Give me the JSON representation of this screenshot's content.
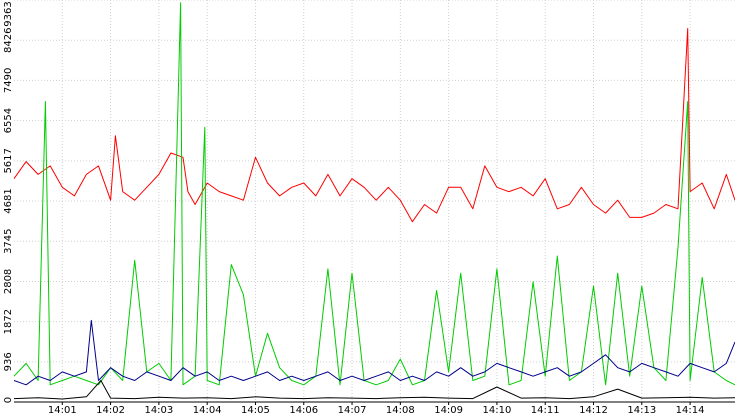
{
  "chart_data": {
    "type": "line",
    "title": "",
    "xlabel": "",
    "ylabel": "",
    "grid": true,
    "legend": "none",
    "y_ticks": [
      0,
      936,
      1872,
      2808,
      3745,
      4681,
      5617,
      6554,
      7490,
      8426,
      9363
    ],
    "ylim": [
      0,
      9363
    ],
    "x_ticks": [
      "14:01",
      "14:02",
      "14:03",
      "14:04",
      "14:05",
      "14:06",
      "14:07",
      "14:08",
      "14:09",
      "14:10",
      "14:11",
      "14:12",
      "14:13",
      "14:14"
    ],
    "x_range_minutes": [
      0.0,
      14.93
    ],
    "x_tick_minutes": [
      1,
      2,
      3,
      4,
      5,
      6,
      7,
      8,
      9,
      10,
      11,
      12,
      13,
      14
    ],
    "series": [
      {
        "color": "#ff0000",
        "x": [
          0.0,
          0.25,
          0.5,
          0.75,
          1.0,
          1.25,
          1.5,
          1.75,
          2.0,
          2.1,
          2.25,
          2.5,
          2.75,
          3.0,
          3.25,
          3.5,
          3.6,
          3.75,
          4.0,
          4.25,
          4.5,
          4.75,
          5.0,
          5.25,
          5.5,
          5.75,
          6.0,
          6.25,
          6.5,
          6.75,
          7.0,
          7.25,
          7.5,
          7.75,
          8.0,
          8.25,
          8.5,
          8.75,
          9.0,
          9.25,
          9.5,
          9.75,
          10.0,
          10.25,
          10.5,
          10.75,
          11.0,
          11.25,
          11.5,
          11.75,
          12.0,
          12.25,
          12.5,
          12.75,
          13.0,
          13.25,
          13.5,
          13.75,
          13.95,
          14.0,
          14.25,
          14.5,
          14.75,
          14.93
        ],
        "y": [
          5200,
          5600,
          5300,
          5500,
          5000,
          4800,
          5300,
          5500,
          4700,
          6200,
          4900,
          4700,
          5000,
          5300,
          5800,
          5700,
          4900,
          4600,
          5100,
          4900,
          4800,
          4700,
          5700,
          5100,
          4800,
          5000,
          5100,
          4800,
          5300,
          4800,
          5200,
          5000,
          4700,
          5000,
          4700,
          4200,
          4600,
          4400,
          5000,
          5000,
          4500,
          5500,
          5000,
          4900,
          5000,
          4800,
          5200,
          4500,
          4600,
          5000,
          4600,
          4400,
          4700,
          4300,
          4300,
          4400,
          4600,
          4500,
          8700,
          4900,
          5100,
          4500,
          5300,
          4700
        ]
      },
      {
        "color": "#00cc00",
        "x": [
          0.0,
          0.25,
          0.5,
          0.65,
          0.75,
          1.0,
          1.25,
          1.5,
          1.75,
          2.0,
          2.25,
          2.5,
          2.75,
          3.0,
          3.25,
          3.45,
          3.5,
          3.75,
          3.95,
          4.0,
          4.25,
          4.5,
          4.75,
          5.0,
          5.25,
          5.5,
          5.75,
          6.0,
          6.25,
          6.5,
          6.75,
          7.0,
          7.25,
          7.5,
          7.75,
          8.0,
          8.25,
          8.5,
          8.75,
          9.0,
          9.25,
          9.5,
          9.75,
          10.0,
          10.25,
          10.5,
          10.75,
          11.0,
          11.25,
          11.5,
          11.75,
          12.0,
          12.25,
          12.5,
          12.75,
          13.0,
          13.25,
          13.5,
          13.75,
          13.95,
          14.0,
          14.25,
          14.5,
          14.75,
          14.93
        ],
        "y": [
          600,
          900,
          500,
          7000,
          400,
          500,
          600,
          500,
          400,
          800,
          500,
          3300,
          700,
          900,
          500,
          9300,
          400,
          600,
          6400,
          500,
          400,
          3200,
          2500,
          600,
          1600,
          800,
          500,
          400,
          600,
          3100,
          400,
          3000,
          500,
          400,
          500,
          1000,
          400,
          500,
          2600,
          700,
          3000,
          500,
          600,
          3100,
          400,
          500,
          2800,
          600,
          3400,
          500,
          700,
          2700,
          400,
          3000,
          600,
          2700,
          800,
          500,
          3600,
          7000,
          500,
          2900,
          700,
          500,
          400
        ]
      },
      {
        "color": "#00008b",
        "x": [
          0.0,
          0.25,
          0.5,
          0.75,
          1.0,
          1.25,
          1.5,
          1.6,
          1.75,
          2.0,
          2.25,
          2.5,
          2.75,
          3.0,
          3.25,
          3.5,
          3.75,
          4.0,
          4.25,
          4.5,
          4.75,
          5.0,
          5.25,
          5.5,
          5.75,
          6.0,
          6.25,
          6.5,
          6.75,
          7.0,
          7.25,
          7.5,
          7.75,
          8.0,
          8.25,
          8.5,
          8.75,
          9.0,
          9.25,
          9.5,
          9.75,
          10.0,
          10.25,
          10.5,
          10.75,
          11.0,
          11.25,
          11.5,
          11.75,
          12.0,
          12.25,
          12.5,
          12.75,
          13.0,
          13.25,
          13.5,
          13.75,
          14.0,
          14.25,
          14.5,
          14.75,
          14.93
        ],
        "y": [
          500,
          400,
          600,
          500,
          700,
          600,
          700,
          1900,
          500,
          800,
          600,
          500,
          700,
          600,
          500,
          800,
          600,
          700,
          500,
          600,
          500,
          600,
          700,
          500,
          600,
          500,
          600,
          700,
          500,
          600,
          500,
          600,
          700,
          500,
          600,
          500,
          700,
          600,
          800,
          600,
          700,
          900,
          800,
          700,
          600,
          700,
          800,
          600,
          700,
          900,
          1100,
          800,
          700,
          900,
          800,
          700,
          600,
          900,
          800,
          700,
          900,
          1400
        ]
      },
      {
        "color": "#000000",
        "x": [
          0.0,
          0.5,
          1.0,
          1.5,
          1.8,
          2.0,
          2.5,
          3.0,
          3.5,
          4.0,
          4.5,
          5.0,
          5.5,
          6.0,
          6.5,
          7.0,
          7.5,
          8.0,
          8.5,
          9.0,
          9.5,
          10.0,
          10.5,
          11.0,
          11.5,
          12.0,
          12.5,
          13.0,
          13.5,
          14.0,
          14.5,
          14.93
        ],
        "y": [
          80,
          100,
          70,
          120,
          500,
          90,
          80,
          110,
          90,
          100,
          80,
          120,
          90,
          80,
          100,
          90,
          80,
          100,
          110,
          90,
          80,
          350,
          90,
          100,
          80,
          120,
          300,
          90,
          100,
          110,
          90,
          100
        ]
      }
    ]
  }
}
